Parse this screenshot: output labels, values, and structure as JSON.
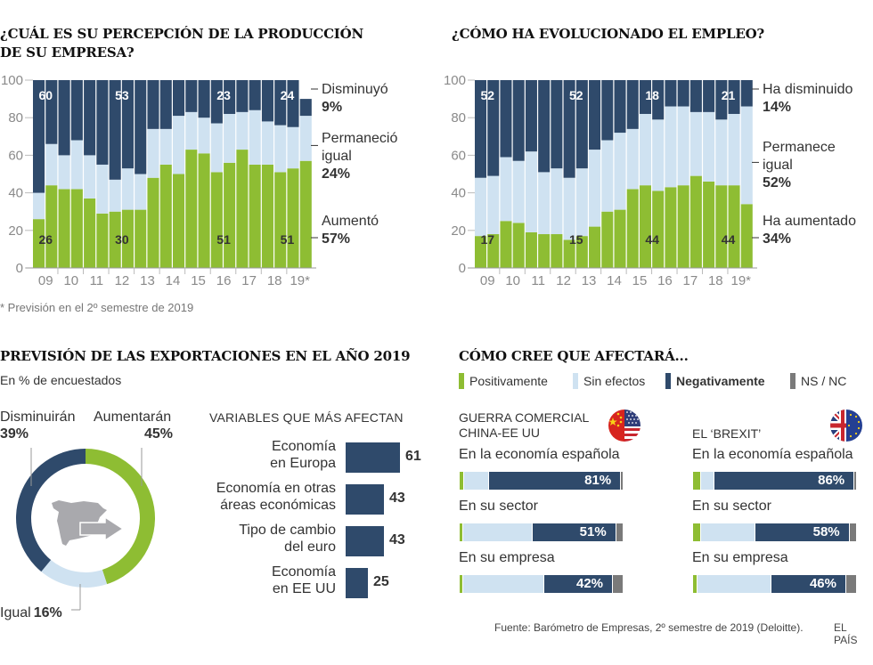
{
  "colors": {
    "navy": "#2f4a6b",
    "green": "#8ebd33",
    "light": "#cfe2f1",
    "gray": "#7a7a7a",
    "map": "#a9a9ad"
  },
  "chart_data": [
    {
      "type": "bar",
      "stacked": true,
      "title": "¿CUÁL ES SU PERCEPCIÓN DE LA PRODUCCIÓN DE SU EMPRESA?",
      "ylim": [
        0,
        100
      ],
      "yticks": [
        "0",
        "20",
        "40",
        "60",
        "80",
        "100"
      ],
      "xtick_labels": [
        "09",
        "10",
        "11",
        "12",
        "13",
        "14",
        "15",
        "16",
        "17",
        "18",
        "19*"
      ],
      "categories": [
        "09-1",
        "09-2",
        "10-1",
        "10-2",
        "11-1",
        "11-2",
        "12-1",
        "12-2",
        "13-1",
        "13-2",
        "14-1",
        "14-2",
        "15-1",
        "15-2",
        "16-1",
        "16-2",
        "17-1",
        "17-2",
        "18-1",
        "18-2",
        "19-1",
        "19-2*"
      ],
      "series": [
        {
          "name": "Aumentó",
          "values": [
            26,
            44,
            42,
            42,
            37,
            29,
            30,
            31,
            31,
            48,
            55,
            50,
            63,
            61,
            51,
            56,
            63,
            55,
            55,
            51,
            53,
            57
          ]
        },
        {
          "name": "Permaneció igual",
          "values": [
            14,
            22,
            18,
            26,
            23,
            26,
            17,
            22,
            19,
            26,
            19,
            31,
            20,
            19,
            26,
            26,
            20,
            29,
            23,
            25,
            22,
            24
          ]
        },
        {
          "name": "Disminuyó",
          "values": [
            60,
            34,
            40,
            32,
            40,
            45,
            53,
            47,
            50,
            26,
            26,
            19,
            17,
            20,
            23,
            18,
            17,
            16,
            22,
            24,
            25,
            9
          ]
        }
      ],
      "bar_labels": [
        {
          "index": 0,
          "series": "Aumentó",
          "text": "26"
        },
        {
          "index": 0,
          "series": "Disminuyó",
          "text": "60"
        },
        {
          "index": 6,
          "series": "Aumentó",
          "text": "30"
        },
        {
          "index": 6,
          "series": "Disminuyó",
          "text": "53"
        },
        {
          "index": 14,
          "series": "Aumentó",
          "text": "51"
        },
        {
          "index": 14,
          "series": "Disminuyó",
          "text": "23"
        },
        {
          "index": 19,
          "series": "Aumentó",
          "text": "51"
        },
        {
          "index": 19,
          "series": "Disminuyó",
          "text": "24"
        }
      ],
      "legend": [
        {
          "label": "Disminuyó",
          "value": "9%"
        },
        {
          "label": "Permaneció igual",
          "line1": "Permaneció",
          "line2": "igual",
          "value": "24%"
        },
        {
          "label": "Aumentó",
          "value": "57%"
        }
      ],
      "footnote": "* Previsión en el 2º semestre de 2019"
    },
    {
      "type": "bar",
      "stacked": true,
      "title": "¿CÓMO HA EVOLUCIONADO EL EMPLEO?",
      "ylim": [
        0,
        100
      ],
      "yticks": [
        "0",
        "20",
        "40",
        "60",
        "80",
        "100"
      ],
      "xtick_labels": [
        "09",
        "10",
        "11",
        "12",
        "13",
        "14",
        "15",
        "16",
        "17",
        "18",
        "19*"
      ],
      "categories": [
        "09-1",
        "09-2",
        "10-1",
        "10-2",
        "11-1",
        "11-2",
        "12-1",
        "12-2",
        "13-1",
        "13-2",
        "14-1",
        "14-2",
        "15-1",
        "15-2",
        "16-1",
        "16-2",
        "17-1",
        "17-2",
        "18-1",
        "18-2",
        "19-1",
        "19-2*"
      ],
      "series": [
        {
          "name": "Ha aumentado",
          "values": [
            17,
            18,
            25,
            24,
            19,
            18,
            18,
            15,
            17,
            22,
            30,
            31,
            42,
            44,
            41,
            43,
            44,
            49,
            46,
            44,
            44,
            34
          ]
        },
        {
          "name": "Permanece igual",
          "values": [
            31,
            31,
            34,
            33,
            43,
            33,
            35,
            33,
            36,
            41,
            38,
            41,
            32,
            38,
            38,
            43,
            42,
            34,
            37,
            35,
            38,
            52
          ]
        },
        {
          "name": "Ha disminuido",
          "values": [
            52,
            51,
            41,
            43,
            38,
            49,
            47,
            52,
            47,
            37,
            32,
            28,
            26,
            18,
            21,
            14,
            14,
            17,
            17,
            21,
            18,
            14
          ]
        }
      ],
      "bar_labels": [
        {
          "index": 0,
          "series": "Ha aumentado",
          "text": "17"
        },
        {
          "index": 0,
          "series": "Ha disminuido",
          "text": "52"
        },
        {
          "index": 7,
          "series": "Ha aumentado",
          "text": "15"
        },
        {
          "index": 7,
          "series": "Ha disminuido",
          "text": "52"
        },
        {
          "index": 13,
          "series": "Ha aumentado",
          "text": "44"
        },
        {
          "index": 13,
          "series": "Ha disminuido",
          "text": "18"
        },
        {
          "index": 19,
          "series": "Ha aumentado",
          "text": "44"
        },
        {
          "index": 19,
          "series": "Ha disminuido",
          "text": "21"
        }
      ],
      "legend": [
        {
          "label": "Ha disminuido",
          "value": "14%"
        },
        {
          "label": "Permanece igual",
          "line1": "Permanece",
          "line2": "igual",
          "value": "52%"
        },
        {
          "label": "Ha aumentado",
          "value": "34%"
        }
      ]
    },
    {
      "type": "pie",
      "donut": true,
      "title": "PREVISIÓN DE LAS EXPORTACIONES EN EL AÑO 2019",
      "subtitle": "En % de encuestados",
      "slices": [
        {
          "name": "Aumentarán",
          "value": 45,
          "label": "45%"
        },
        {
          "name": "Igual",
          "value": 16,
          "label": "16%"
        },
        {
          "name": "Disminuirán",
          "value": 39,
          "label": "39%"
        }
      ]
    },
    {
      "type": "bar",
      "orientation": "horizontal",
      "title": "VARIABLES QUE MÁS AFECTAN",
      "categories": [
        {
          "line1": "Economía",
          "line2": "en Europa"
        },
        {
          "line1": "Economía en otras",
          "line2": "áreas económicas"
        },
        {
          "line1": "Tipo de cambio",
          "line2": "del euro"
        },
        {
          "line1": "Economía",
          "line2": "en EE UU"
        }
      ],
      "values": [
        61,
        43,
        43,
        25
      ]
    },
    {
      "type": "bar",
      "orientation": "horizontal",
      "stacked": true,
      "title": "CÓMO CREE QUE AFECTARÁ...",
      "legend": [
        "Positivamente",
        "Sin efectos",
        "Negativamente",
        "NS / NC"
      ],
      "groups": [
        {
          "title_line1": "GUERRA COMERCIAL",
          "title_line2": "CHINA-EE UU",
          "flag": "china-usa-flag",
          "rows": [
            {
              "label": "En la economía española",
              "values": [
                3,
                15,
                81,
                1
              ],
              "label_value": "81%"
            },
            {
              "label": "En su sector",
              "values": [
                2,
                43,
                51,
                4
              ],
              "label_value": "51%"
            },
            {
              "label": "En su empresa",
              "values": [
                2,
                50,
                42,
                6
              ],
              "label_value": "42%"
            }
          ]
        },
        {
          "title_line1": "EL ‘BREXIT’",
          "title_line2": "",
          "flag": "uk-eu-flag",
          "rows": [
            {
              "label": "En la economía española",
              "values": [
                5,
                8,
                86,
                1
              ],
              "label_value": "86%"
            },
            {
              "label": "En su sector",
              "values": [
                5,
                33,
                58,
                4
              ],
              "label_value": "58%"
            },
            {
              "label": "En su empresa",
              "values": [
                3,
                45,
                46,
                6
              ],
              "label_value": "46%"
            }
          ]
        }
      ]
    }
  ],
  "footer": {
    "source": "Fuente: Barómetro de Empresas, 2º semestre de 2019 (Deloitte).",
    "brand": "EL PAÍS"
  }
}
